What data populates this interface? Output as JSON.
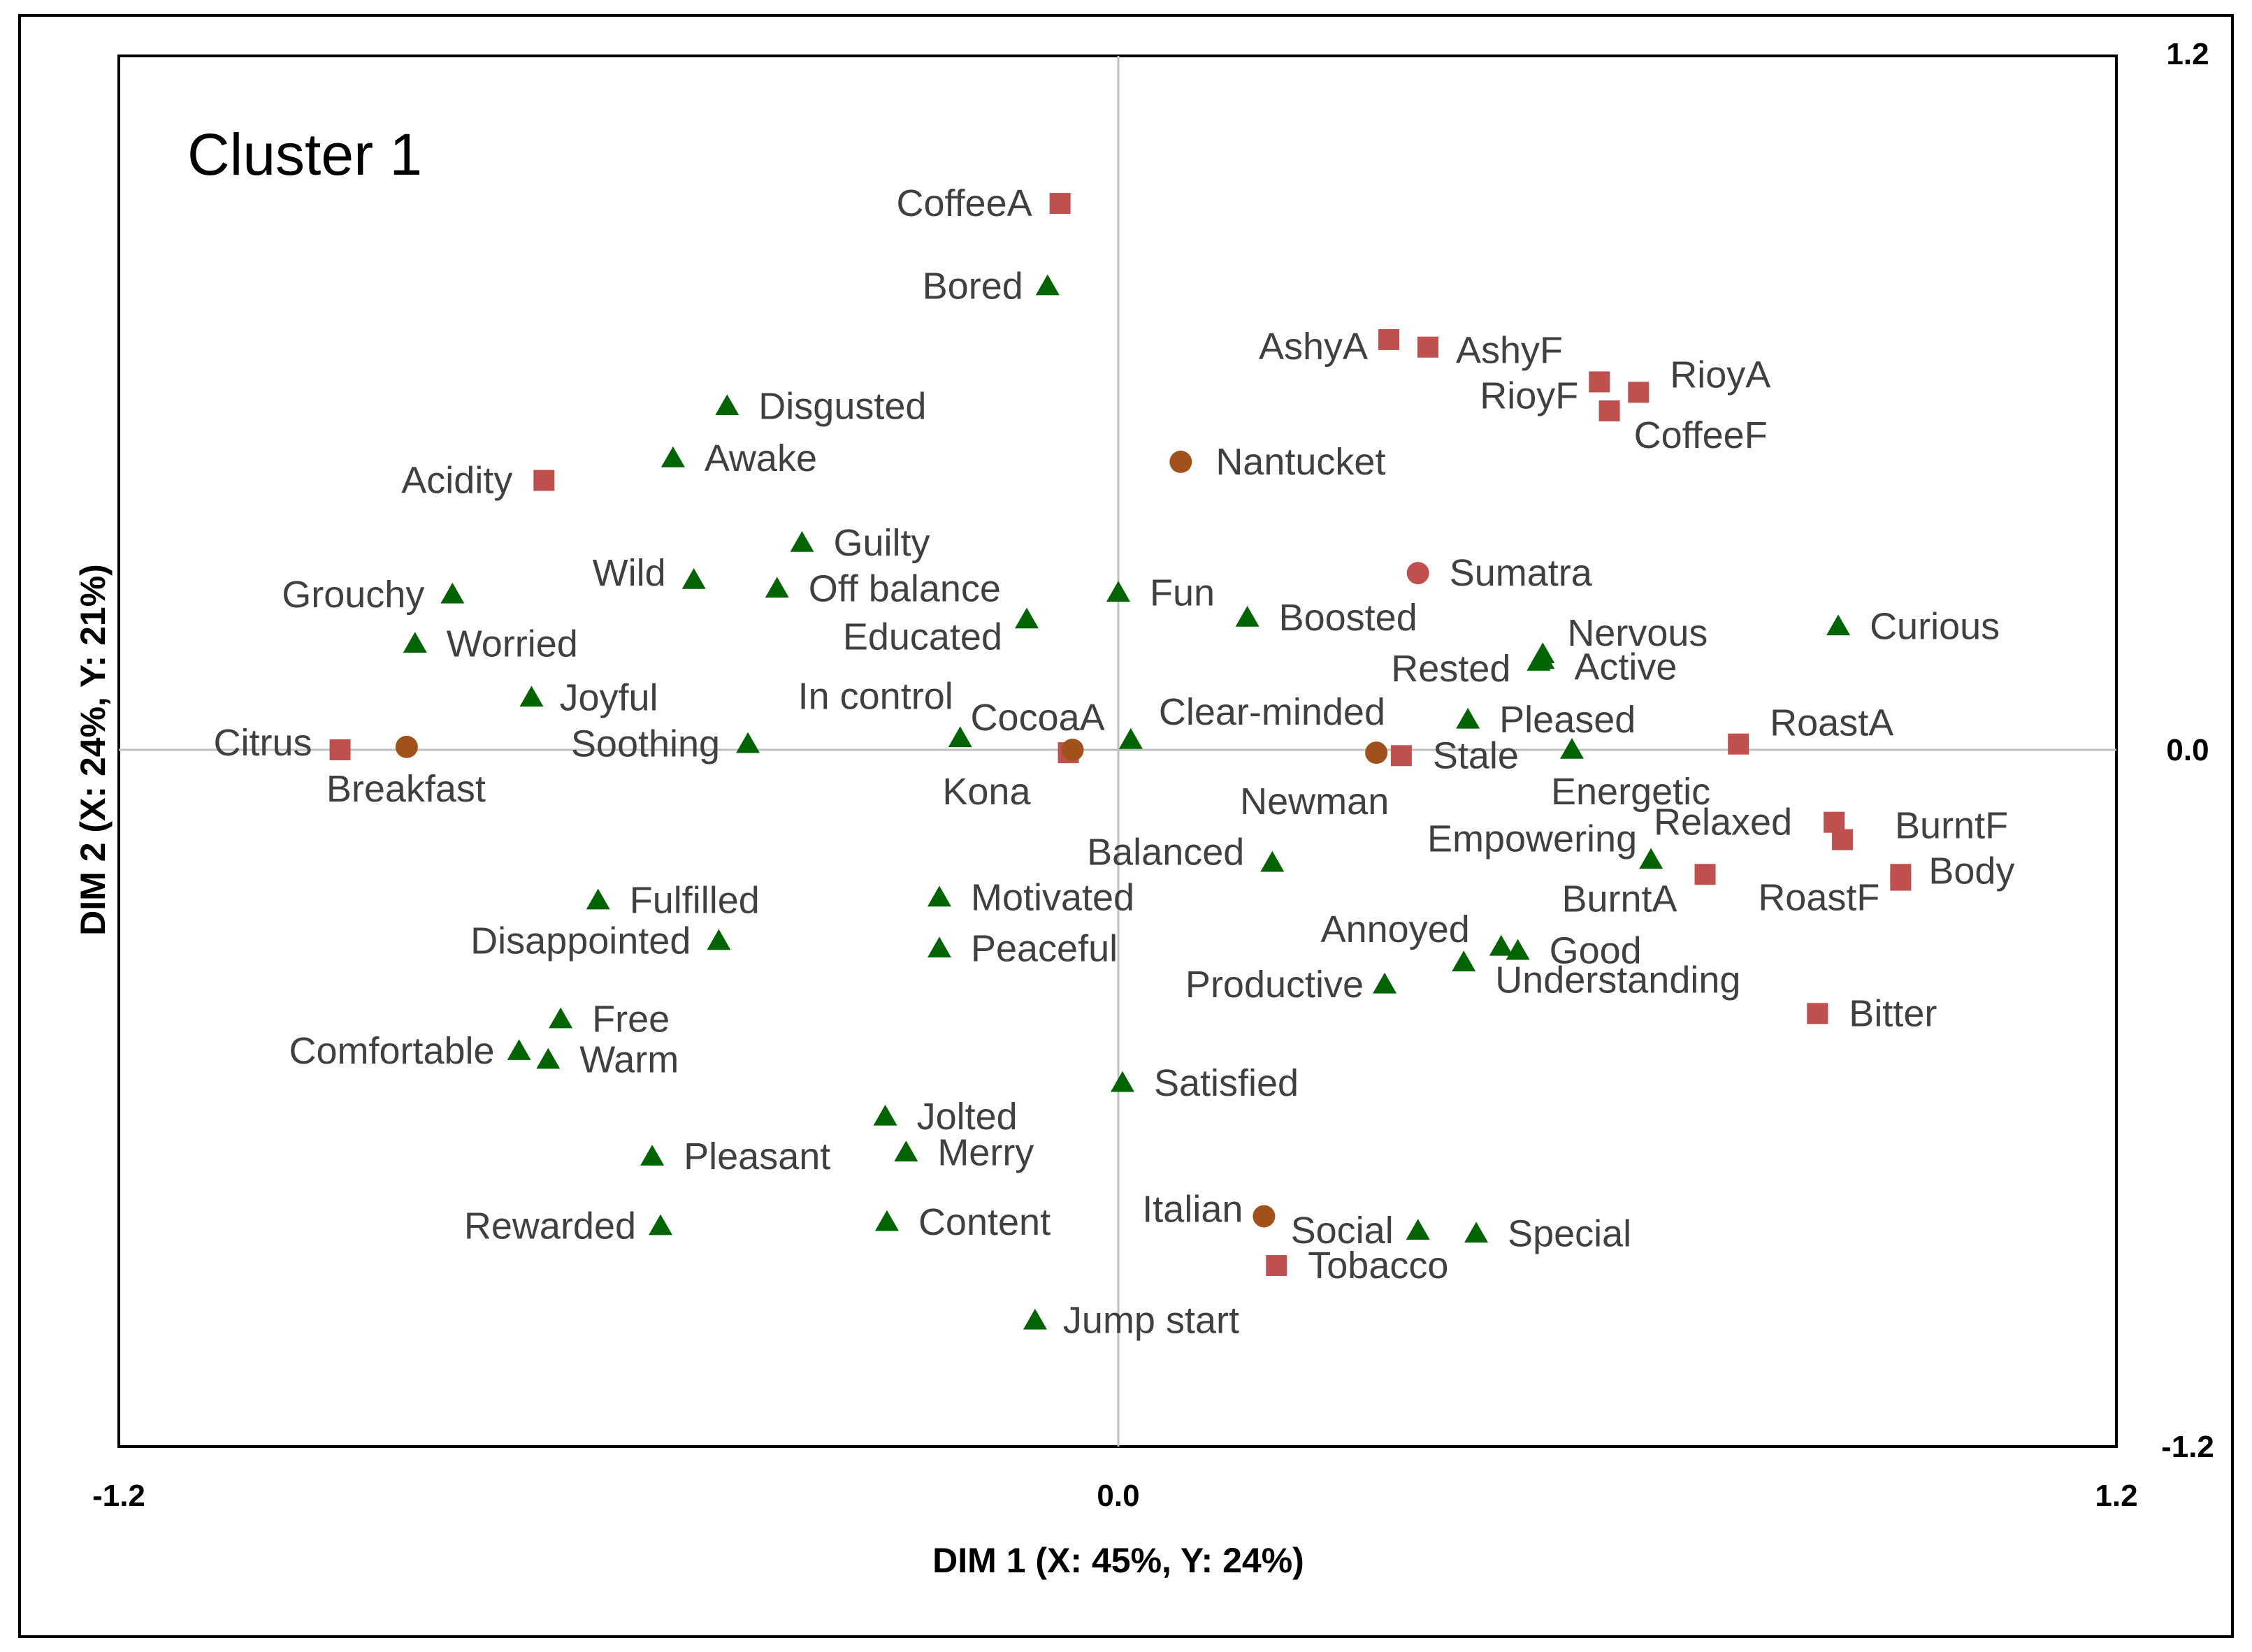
{
  "chart_data": {
    "type": "scatter",
    "title": "Cluster 1",
    "xlabel": "DIM 1 (X: 45%, Y: 24%)",
    "ylabel": "DIM 2 (X: 24%, Y: 21%)",
    "xlim": [
      -1.2,
      1.2
    ],
    "ylim": [
      -1.2,
      1.2
    ],
    "x_ticks": [
      "-1.2",
      "0.0",
      "1.2"
    ],
    "y_ticks": [
      "1.2",
      "0.0",
      "-1.2"
    ],
    "grid": false,
    "colors": {
      "triangle": "#006400",
      "square": "#C0504D",
      "circle_brown": "#A0521A",
      "circle_red": "#C0504D"
    },
    "series": [
      {
        "name": "Emotions",
        "marker": "triangle",
        "points": [
          {
            "label": "Bored",
            "x": -0.085,
            "y": 0.8
          },
          {
            "label": "Disgusted",
            "x": -0.47,
            "y": 0.593
          },
          {
            "label": "Awake",
            "x": -0.535,
            "y": 0.503
          },
          {
            "label": "Guilty",
            "x": -0.38,
            "y": 0.357
          },
          {
            "label": "Grouchy",
            "x": -0.8,
            "y": 0.268
          },
          {
            "label": "Wild",
            "x": -0.51,
            "y": 0.293
          },
          {
            "label": "Off balance",
            "x": -0.41,
            "y": 0.278
          },
          {
            "label": "Fun",
            "x": 0.0,
            "y": 0.271
          },
          {
            "label": "Boosted",
            "x": 0.155,
            "y": 0.228
          },
          {
            "label": "Educated",
            "x": -0.11,
            "y": 0.225
          },
          {
            "label": "Worried",
            "x": -0.845,
            "y": 0.183
          },
          {
            "label": "Nervous",
            "x": 0.51,
            "y": 0.165
          },
          {
            "label": "Rested",
            "x": 0.505,
            "y": 0.152
          },
          {
            "label": "Active",
            "x": 0.51,
            "y": 0.155
          },
          {
            "label": "Curious",
            "x": 0.865,
            "y": 0.213
          },
          {
            "label": "Joyful",
            "x": -0.705,
            "y": 0.09
          },
          {
            "label": "Pleased",
            "x": 0.42,
            "y": 0.052
          },
          {
            "label": "In control",
            "x": -0.19,
            "y": 0.02
          },
          {
            "label": "Clear-minded",
            "x": 0.015,
            "y": 0.017
          },
          {
            "label": "Soothing",
            "x": -0.445,
            "y": 0.01
          },
          {
            "label": "Energetic",
            "x": 0.545,
            "y": 0.0
          },
          {
            "label": "Balanced",
            "x": 0.185,
            "y": -0.195
          },
          {
            "label": "Empowering",
            "x": 0.64,
            "y": -0.19
          },
          {
            "label": "Fulfilled",
            "x": -0.625,
            "y": -0.26
          },
          {
            "label": "Motivated",
            "x": -0.215,
            "y": -0.255
          },
          {
            "label": "Disappointed",
            "x": -0.48,
            "y": -0.33
          },
          {
            "label": "Peaceful",
            "x": -0.215,
            "y": -0.343
          },
          {
            "label": "Annoyed",
            "x": 0.46,
            "y": -0.34
          },
          {
            "label": "Good",
            "x": 0.48,
            "y": -0.347
          },
          {
            "label": "Understanding",
            "x": 0.415,
            "y": -0.367
          },
          {
            "label": "Productive",
            "x": 0.32,
            "y": -0.405
          },
          {
            "label": "Free",
            "x": -0.67,
            "y": -0.465
          },
          {
            "label": "Comfortable",
            "x": -0.72,
            "y": -0.52
          },
          {
            "label": "Warm",
            "x": -0.685,
            "y": -0.535
          },
          {
            "label": "Satisfied",
            "x": 0.005,
            "y": -0.575
          },
          {
            "label": "Jolted",
            "x": -0.28,
            "y": -0.633
          },
          {
            "label": "Merry",
            "x": -0.255,
            "y": -0.695
          },
          {
            "label": "Pleasant",
            "x": -0.56,
            "y": -0.702
          },
          {
            "label": "Content",
            "x": -0.278,
            "y": -0.815
          },
          {
            "label": "Rewarded",
            "x": -0.55,
            "y": -0.822
          },
          {
            "label": "Social",
            "x": 0.36,
            "y": -0.83
          },
          {
            "label": "Special",
            "x": 0.43,
            "y": -0.835
          },
          {
            "label": "Jump start",
            "x": -0.1,
            "y": -0.985
          }
        ]
      },
      {
        "name": "Attributes",
        "marker": "square",
        "points": [
          {
            "label": "CoffeeA",
            "x": -0.07,
            "y": 0.943
          },
          {
            "label": "AshyA",
            "x": 0.325,
            "y": 0.708
          },
          {
            "label": "AshyF",
            "x": 0.372,
            "y": 0.695
          },
          {
            "label": "RioyF",
            "x": 0.578,
            "y": 0.635
          },
          {
            "label": "RioyA",
            "x": 0.625,
            "y": 0.617
          },
          {
            "label": "CoffeeF",
            "x": 0.59,
            "y": 0.585
          },
          {
            "label": "Acidity",
            "x": -0.69,
            "y": 0.465
          },
          {
            "label": "Citrus",
            "x": -0.935,
            "y": 0.0
          },
          {
            "label": "CocoaA",
            "x": -0.06,
            "y": -0.005
          },
          {
            "label": "Stale",
            "x": 0.34,
            "y": -0.01
          },
          {
            "label": "RoastA",
            "x": 0.745,
            "y": 0.01
          },
          {
            "label": "Relaxed",
            "x": 0.86,
            "y": -0.125
          },
          {
            "label": "BurntF",
            "x": 0.87,
            "y": -0.155
          },
          {
            "label": "BurntA",
            "x": 0.705,
            "y": -0.215
          },
          {
            "label": "RoastF",
            "x": 0.94,
            "y": -0.225
          },
          {
            "label": "Body",
            "x": 0.94,
            "y": -0.215
          },
          {
            "label": "Bitter",
            "x": 0.84,
            "y": -0.455
          },
          {
            "label": "Tobacco",
            "x": 0.19,
            "y": -0.89
          }
        ]
      },
      {
        "name": "Products",
        "marker": "circle",
        "points": [
          {
            "label": "Nantucket",
            "x": 0.075,
            "y": 0.497,
            "color": "brown"
          },
          {
            "label": "Sumatra",
            "x": 0.36,
            "y": 0.305,
            "color": "red"
          },
          {
            "label": "Breakfast",
            "x": -0.855,
            "y": 0.005,
            "color": "brown"
          },
          {
            "label": "Kona",
            "x": -0.055,
            "y": 0.0,
            "color": "brown"
          },
          {
            "label": "Newman",
            "x": 0.31,
            "y": -0.005,
            "color": "brown"
          },
          {
            "label": "Italian",
            "x": 0.175,
            "y": -0.805,
            "color": "brown"
          }
        ]
      }
    ]
  }
}
